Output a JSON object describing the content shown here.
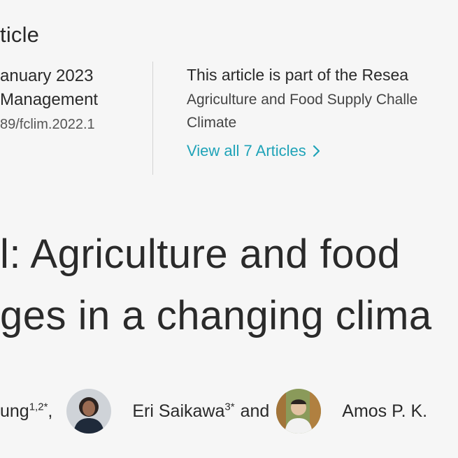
{
  "article": {
    "type": "ticle"
  },
  "meta": {
    "date": "anuary 2023",
    "journal": "Management",
    "doi": "89/fclim.2022.1"
  },
  "research_topic": {
    "heading": "This article is part of the Resea",
    "name_line1": "Agriculture and Food Supply Challe",
    "name_line2": "Climate",
    "view_all": "View all 7 Articles",
    "icon": "chevron-right-icon",
    "link_color": "#1fa3b8"
  },
  "title": {
    "line1": "l: Agriculture and food",
    "line2": "ges in a changing clima"
  },
  "authors": {
    "author1": {
      "name": "ung",
      "affil": "1,2*",
      "separator": ","
    },
    "author2": {
      "name": "Eri Saikawa",
      "affil": "3*",
      "conjunction": "and"
    },
    "author3": {
      "name": "Amos P. K. "
    }
  }
}
